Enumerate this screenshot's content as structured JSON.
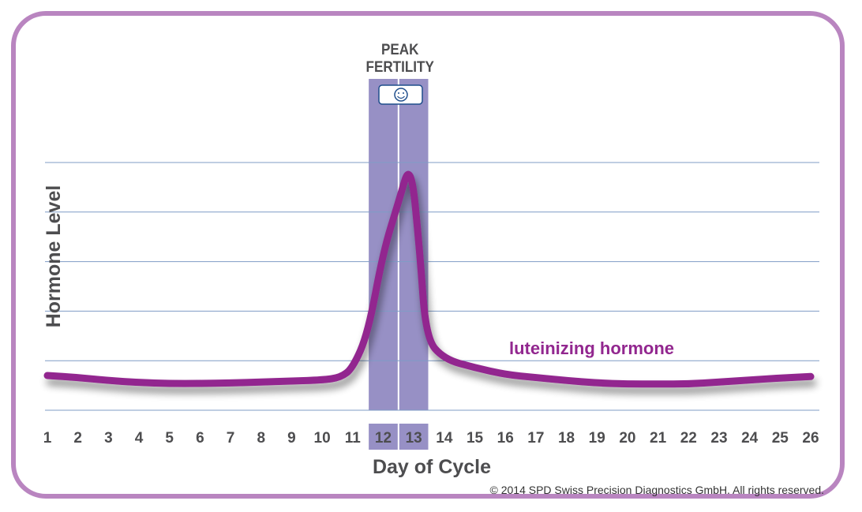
{
  "chart_data": {
    "type": "line",
    "title": "",
    "xlabel": "Day of Cycle",
    "ylabel": "Hormone Level",
    "x_ticks": [
      1,
      2,
      3,
      4,
      5,
      6,
      7,
      8,
      9,
      10,
      11,
      12,
      13,
      14,
      15,
      16,
      17,
      18,
      19,
      20,
      21,
      22,
      23,
      24,
      25,
      26
    ],
    "xlim": [
      1,
      26
    ],
    "ylim": [
      0,
      5
    ],
    "grid": true,
    "highlight": {
      "days": [
        12,
        13
      ],
      "label_line1": "PEAK",
      "label_line2": "FERTILITY",
      "icon": "smiley-icon",
      "color": "#9790c5"
    },
    "series": [
      {
        "name": "luteinizing hormone",
        "color": "#92278f",
        "x": [
          1,
          2,
          3,
          4,
          5,
          6,
          7,
          8,
          9,
          10,
          10.6,
          11,
          11.5,
          12,
          12.5,
          12.9,
          13.2,
          13.4,
          14,
          15,
          16,
          17,
          18,
          19,
          20,
          21,
          22,
          23,
          24,
          25,
          26
        ],
        "y": [
          0.7,
          0.66,
          0.6,
          0.56,
          0.54,
          0.54,
          0.55,
          0.57,
          0.59,
          0.61,
          0.66,
          0.85,
          1.55,
          3.2,
          4.2,
          5.05,
          3.2,
          1.45,
          1.03,
          0.86,
          0.72,
          0.66,
          0.6,
          0.55,
          0.53,
          0.53,
          0.53,
          0.57,
          0.61,
          0.65,
          0.68
        ]
      }
    ]
  },
  "copyright": "© 2014 SPD Swiss Precision Diagnostics GmbH. All rights reserved.",
  "colors": {
    "frame": "#b985c0",
    "grid": "#7f9cc6",
    "text": "#4d4d4f"
  }
}
